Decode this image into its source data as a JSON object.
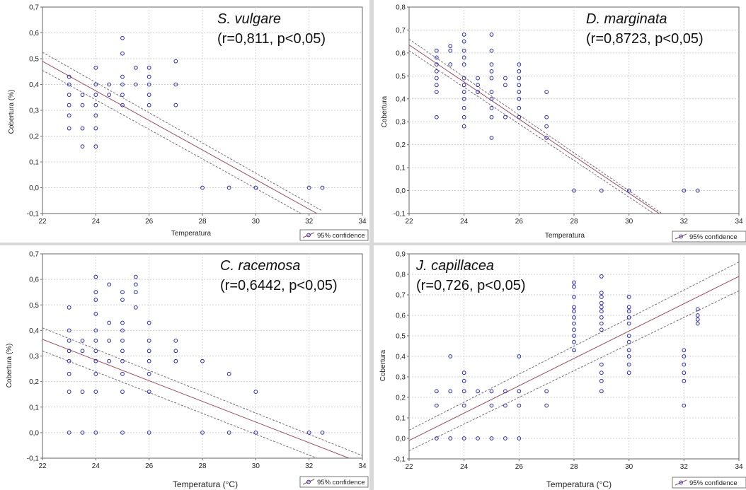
{
  "colors": {
    "marker": "#2a2ab8",
    "fit_line": "#a04a58",
    "conf_line": "#7a6a78",
    "grid": "#cfcfcf",
    "axis": "#666666"
  },
  "chart_data": [
    {
      "type": "scatter",
      "species": "S. vulgare",
      "stats": "(r=0,811,  p<0,05)",
      "xlabel": "Temperatura",
      "ylabel": "Cobertura (%)",
      "legend": "95% confidence",
      "legend_position": "bottom-right",
      "grid": true,
      "xlim": [
        22,
        34
      ],
      "ylim": [
        -0.1,
        0.7
      ],
      "x_ticks": [
        "22",
        "24",
        "26",
        "28",
        "30",
        "32",
        "34"
      ],
      "y_ticks": [
        "-0,1",
        "0,0",
        "0,1",
        "0,2",
        "0,3",
        "0,4",
        "0,5",
        "0,6",
        "0,7"
      ],
      "fit": [
        [
          22,
          0.49
        ],
        [
          32.3,
          -0.1
        ]
      ],
      "conf_upper": [
        [
          22,
          0.525
        ],
        [
          32.5,
          -0.09
        ]
      ],
      "conf_lower": [
        [
          22,
          0.455
        ],
        [
          31.7,
          -0.1
        ]
      ],
      "points": [
        [
          23,
          0.43
        ],
        [
          23,
          0.4
        ],
        [
          23,
          0.36
        ],
        [
          23,
          0.32
        ],
        [
          23,
          0.28
        ],
        [
          23,
          0.23
        ],
        [
          23.5,
          0.36
        ],
        [
          23.5,
          0.32
        ],
        [
          23.5,
          0.23
        ],
        [
          23.5,
          0.16
        ],
        [
          24,
          0.465
        ],
        [
          24,
          0.4
        ],
        [
          24,
          0.36
        ],
        [
          24,
          0.32
        ],
        [
          24,
          0.28
        ],
        [
          24,
          0.23
        ],
        [
          24,
          0.16
        ],
        [
          24.5,
          0.4
        ],
        [
          24.5,
          0.36
        ],
        [
          25,
          0.58
        ],
        [
          25,
          0.52
        ],
        [
          25,
          0.43
        ],
        [
          25,
          0.4
        ],
        [
          25,
          0.36
        ],
        [
          25,
          0.32
        ],
        [
          25.5,
          0.465
        ],
        [
          25.5,
          0.4
        ],
        [
          26,
          0.465
        ],
        [
          26,
          0.43
        ],
        [
          26,
          0.4
        ],
        [
          26,
          0.36
        ],
        [
          26,
          0.32
        ],
        [
          27,
          0.49
        ],
        [
          27,
          0.4
        ],
        [
          27,
          0.32
        ],
        [
          28,
          0.0
        ],
        [
          29,
          0.0
        ],
        [
          30,
          0.0
        ],
        [
          32,
          0.0
        ],
        [
          32.5,
          0.0
        ]
      ]
    },
    {
      "type": "scatter",
      "species": "D. marginata",
      "stats": "(r=0,8723,  p<0,05)",
      "xlabel": "Temperatura",
      "ylabel": "Cobertura",
      "legend": "95% confidence",
      "legend_position": "bottom-right",
      "grid": true,
      "xlim": [
        22,
        34
      ],
      "ylim": [
        -0.1,
        0.8
      ],
      "x_ticks": [
        "22",
        "24",
        "26",
        "28",
        "30",
        "32",
        "34"
      ],
      "y_ticks": [
        "-0,1",
        "0,0",
        "0,1",
        "0,2",
        "0,3",
        "0,4",
        "0,5",
        "0,6",
        "0,7",
        "0,8"
      ],
      "fit": [
        [
          22,
          0.635
        ],
        [
          31.1,
          -0.1
        ]
      ],
      "conf_upper": [
        [
          22,
          0.66
        ],
        [
          31.2,
          -0.1
        ]
      ],
      "conf_lower": [
        [
          22,
          0.61
        ],
        [
          30.9,
          -0.1
        ]
      ],
      "points": [
        [
          23,
          0.61
        ],
        [
          23,
          0.58
        ],
        [
          23,
          0.55
        ],
        [
          23,
          0.52
        ],
        [
          23,
          0.49
        ],
        [
          23,
          0.46
        ],
        [
          23,
          0.43
        ],
        [
          23,
          0.32
        ],
        [
          23.5,
          0.63
        ],
        [
          23.5,
          0.61
        ],
        [
          23.5,
          0.55
        ],
        [
          24,
          0.68
        ],
        [
          24,
          0.65
        ],
        [
          24,
          0.61
        ],
        [
          24,
          0.58
        ],
        [
          24,
          0.55
        ],
        [
          24,
          0.49
        ],
        [
          24,
          0.46
        ],
        [
          24,
          0.43
        ],
        [
          24,
          0.4
        ],
        [
          24,
          0.36
        ],
        [
          24,
          0.32
        ],
        [
          24,
          0.28
        ],
        [
          24.5,
          0.49
        ],
        [
          24.5,
          0.46
        ],
        [
          24.5,
          0.43
        ],
        [
          25,
          0.68
        ],
        [
          25,
          0.61
        ],
        [
          25,
          0.55
        ],
        [
          25,
          0.52
        ],
        [
          25,
          0.49
        ],
        [
          25,
          0.43
        ],
        [
          25,
          0.4
        ],
        [
          25,
          0.36
        ],
        [
          25,
          0.32
        ],
        [
          25,
          0.23
        ],
        [
          25.5,
          0.49
        ],
        [
          25.5,
          0.46
        ],
        [
          25.5,
          0.32
        ],
        [
          26,
          0.55
        ],
        [
          26,
          0.52
        ],
        [
          26,
          0.49
        ],
        [
          26,
          0.46
        ],
        [
          26,
          0.43
        ],
        [
          26,
          0.4
        ],
        [
          26,
          0.36
        ],
        [
          26,
          0.32
        ],
        [
          27,
          0.43
        ],
        [
          27,
          0.32
        ],
        [
          27,
          0.28
        ],
        [
          27,
          0.23
        ],
        [
          28,
          0.0
        ],
        [
          29,
          0.0
        ],
        [
          30,
          0.0
        ],
        [
          32,
          0.0
        ],
        [
          32.5,
          0.0
        ]
      ]
    },
    {
      "type": "scatter",
      "species": "C. racemosa",
      "stats": "(r=0,6442,  p<0,05)",
      "xlabel": "Temperatura (°C)",
      "ylabel": "Cobertura (%)",
      "legend": "95% confidence",
      "legend_position": "bottom-right",
      "grid": true,
      "xlim": [
        22,
        34
      ],
      "ylim": [
        -0.1,
        0.7
      ],
      "x_ticks": [
        "22",
        "24",
        "26",
        "28",
        "30",
        "32",
        "34"
      ],
      "y_ticks": [
        "-0,1",
        "0,0",
        "0,1",
        "0,2",
        "0,3",
        "0,4",
        "0,5",
        "0,6",
        "0,7"
      ],
      "fit": [
        [
          22,
          0.365
        ],
        [
          33.5,
          -0.1
        ]
      ],
      "conf_upper": [
        [
          22,
          0.41
        ],
        [
          34,
          -0.09
        ]
      ],
      "conf_lower": [
        [
          22,
          0.32
        ],
        [
          32.3,
          -0.1
        ]
      ],
      "points": [
        [
          23,
          0.49
        ],
        [
          23,
          0.4
        ],
        [
          23,
          0.36
        ],
        [
          23,
          0.32
        ],
        [
          23,
          0.28
        ],
        [
          23,
          0.23
        ],
        [
          23,
          0.16
        ],
        [
          23,
          0.0
        ],
        [
          23.5,
          0.36
        ],
        [
          23.5,
          0.32
        ],
        [
          23.5,
          0.16
        ],
        [
          23.5,
          0.0
        ],
        [
          24,
          0.61
        ],
        [
          24,
          0.55
        ],
        [
          24,
          0.52
        ],
        [
          24,
          0.465
        ],
        [
          24,
          0.4
        ],
        [
          24,
          0.36
        ],
        [
          24,
          0.32
        ],
        [
          24,
          0.28
        ],
        [
          24,
          0.23
        ],
        [
          24,
          0.16
        ],
        [
          24,
          0.0
        ],
        [
          24.5,
          0.58
        ],
        [
          24.5,
          0.43
        ],
        [
          24.5,
          0.36
        ],
        [
          24.5,
          0.28
        ],
        [
          25,
          0.55
        ],
        [
          25,
          0.52
        ],
        [
          25,
          0.43
        ],
        [
          25,
          0.4
        ],
        [
          25,
          0.36
        ],
        [
          25,
          0.32
        ],
        [
          25,
          0.28
        ],
        [
          25,
          0.23
        ],
        [
          25,
          0.16
        ],
        [
          25,
          0.0
        ],
        [
          25.5,
          0.61
        ],
        [
          25.5,
          0.58
        ],
        [
          25.5,
          0.55
        ],
        [
          25.5,
          0.49
        ],
        [
          26,
          0.43
        ],
        [
          26,
          0.36
        ],
        [
          26,
          0.32
        ],
        [
          26,
          0.28
        ],
        [
          26,
          0.23
        ],
        [
          26,
          0.16
        ],
        [
          26,
          0.0
        ],
        [
          27,
          0.36
        ],
        [
          27,
          0.32
        ],
        [
          27,
          0.28
        ],
        [
          28,
          0.28
        ],
        [
          28,
          0.0
        ],
        [
          29,
          0.23
        ],
        [
          29,
          0.0
        ],
        [
          30,
          0.16
        ],
        [
          30,
          0.0
        ],
        [
          32,
          0.0
        ],
        [
          32.5,
          0.0
        ]
      ]
    },
    {
      "type": "scatter",
      "species": "J. capillacea",
      "stats": "(r=0,726,  p<0,05)",
      "xlabel": "Temperatura (°C)",
      "ylabel": "Cobertura",
      "legend": "95% confidence",
      "legend_position": "bottom-right",
      "grid": true,
      "xlim": [
        22,
        34
      ],
      "ylim": [
        -0.1,
        0.9
      ],
      "x_ticks": [
        "22",
        "24",
        "26",
        "28",
        "30",
        "32",
        "34"
      ],
      "y_ticks": [
        "-0,1",
        "0,0",
        "0,1",
        "0,2",
        "0,3",
        "0,4",
        "0,5",
        "0,6",
        "0,7",
        "0,8",
        "0,9"
      ],
      "fit": [
        [
          22,
          -0.01
        ],
        [
          34,
          0.79
        ]
      ],
      "conf_upper": [
        [
          22,
          0.04
        ],
        [
          34,
          0.86
        ]
      ],
      "conf_lower": [
        [
          22,
          -0.06
        ],
        [
          34,
          0.72
        ]
      ],
      "points": [
        [
          23,
          0.23
        ],
        [
          23,
          0.16
        ],
        [
          23,
          0.0
        ],
        [
          23.5,
          0.4
        ],
        [
          23.5,
          0.23
        ],
        [
          23.5,
          0.0
        ],
        [
          24,
          0.32
        ],
        [
          24,
          0.28
        ],
        [
          24,
          0.23
        ],
        [
          24,
          0.16
        ],
        [
          24,
          0.0
        ],
        [
          24.5,
          0.23
        ],
        [
          24.5,
          0.0
        ],
        [
          25,
          0.23
        ],
        [
          25,
          0.16
        ],
        [
          25,
          0.0
        ],
        [
          25.5,
          0.23
        ],
        [
          25.5,
          0.16
        ],
        [
          25.5,
          0.0
        ],
        [
          26,
          0.4
        ],
        [
          26,
          0.23
        ],
        [
          26,
          0.16
        ],
        [
          26,
          0.0
        ],
        [
          27,
          0.23
        ],
        [
          27,
          0.16
        ],
        [
          28,
          0.76
        ],
        [
          28,
          0.74
        ],
        [
          28,
          0.69
        ],
        [
          28,
          0.64
        ],
        [
          28,
          0.62
        ],
        [
          28,
          0.59
        ],
        [
          28,
          0.56
        ],
        [
          28,
          0.53
        ],
        [
          28,
          0.5
        ],
        [
          28,
          0.47
        ],
        [
          28,
          0.43
        ],
        [
          29,
          0.79
        ],
        [
          29,
          0.71
        ],
        [
          29,
          0.69
        ],
        [
          29,
          0.66
        ],
        [
          29,
          0.64
        ],
        [
          29,
          0.62
        ],
        [
          29,
          0.59
        ],
        [
          29,
          0.56
        ],
        [
          29,
          0.53
        ],
        [
          29,
          0.36
        ],
        [
          29,
          0.32
        ],
        [
          29,
          0.28
        ],
        [
          29,
          0.23
        ],
        [
          30,
          0.69
        ],
        [
          30,
          0.64
        ],
        [
          30,
          0.62
        ],
        [
          30,
          0.59
        ],
        [
          30,
          0.56
        ],
        [
          30,
          0.5
        ],
        [
          30,
          0.47
        ],
        [
          30,
          0.43
        ],
        [
          30,
          0.4
        ],
        [
          30,
          0.36
        ],
        [
          30,
          0.32
        ],
        [
          32,
          0.43
        ],
        [
          32,
          0.4
        ],
        [
          32,
          0.36
        ],
        [
          32,
          0.32
        ],
        [
          32,
          0.28
        ],
        [
          32,
          0.16
        ],
        [
          32.5,
          0.63
        ],
        [
          32.5,
          0.6
        ],
        [
          32.5,
          0.58
        ],
        [
          32.5,
          0.56
        ]
      ]
    }
  ]
}
